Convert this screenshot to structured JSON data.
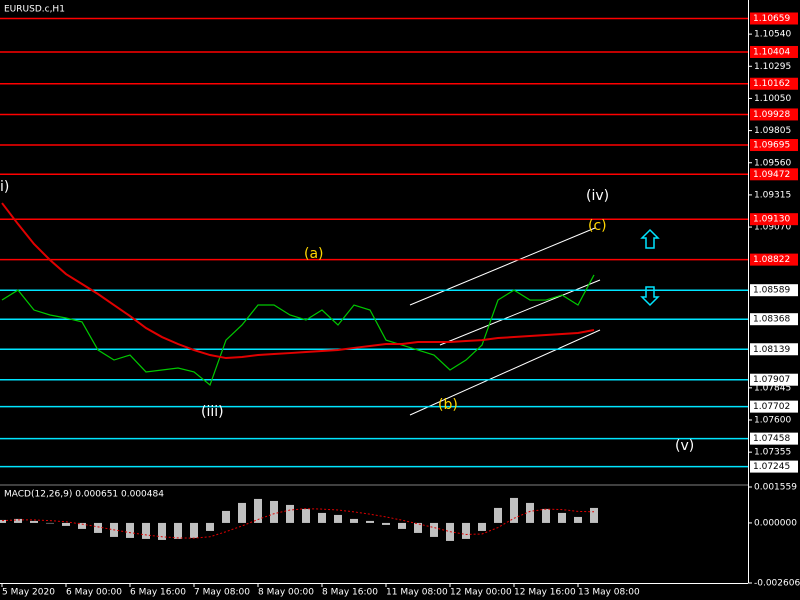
{
  "chart_data": [
    {
      "type": "line",
      "title": "EURUSD.c,H1",
      "categories": [
        "5 May 2020",
        null,
        null,
        null,
        "6 May 00:00",
        null,
        null,
        null,
        "6 May 16:00",
        null,
        null,
        null,
        "7 May 08:00",
        null,
        null,
        null,
        "8 May 00:00",
        null,
        null,
        null,
        "8 May 16:00",
        null,
        null,
        null,
        "11 May 08:00",
        null,
        null,
        null,
        "12 May 00:00",
        null,
        null,
        null,
        "12 May 16:00",
        null,
        null,
        null,
        "13 May 08:00",
        null
      ],
      "series": [
        {
          "color": "#00c800",
          "values": [
            1.08514,
            1.0859,
            1.08438,
            1.084,
            1.08377,
            1.08347,
            1.08133,
            1.08057,
            1.08095,
            1.07966,
            1.07981,
            1.07996,
            1.07966,
            1.07867,
            1.08209,
            1.08324,
            1.08476,
            1.08476,
            1.084,
            1.08362,
            1.08438,
            1.08324,
            1.08476,
            1.08438,
            1.08209,
            1.08171,
            1.08133,
            1.08095,
            1.07981,
            1.08057,
            1.08171,
            1.08514,
            1.0859,
            1.08514,
            1.08514,
            1.08552,
            1.08476,
            1.08705
          ]
        },
        {
          "color": "#e00000",
          "values": [
            1.09253,
            1.09093,
            1.08941,
            1.08819,
            1.08712,
            1.08636,
            1.0856,
            1.08476,
            1.08392,
            1.08301,
            1.08232,
            1.08179,
            1.08133,
            1.08095,
            1.08072,
            1.0808,
            1.08095,
            1.08103,
            1.0811,
            1.08118,
            1.08126,
            1.08133,
            1.08149,
            1.08164,
            1.08179,
            1.08179,
            1.08194,
            1.08194,
            1.08194,
            1.08202,
            1.08209,
            1.08225,
            1.08232,
            1.0824,
            1.08248,
            1.08255,
            1.08263,
            1.08286
          ]
        }
      ],
      "ylim": [
        1.0712,
        1.108
      ],
      "yticks": [
        {
          "value": 1.1054,
          "label": "1.10540"
        },
        1.10295,
        {
          "value": 1.1005,
          "label": "1.10050"
        },
        1.09805,
        {
          "value": 1.0956,
          "label": "1.09560"
        },
        1.09315,
        {
          "value": 1.0907,
          "label": "1.09070"
        },
        1.07845,
        {
          "value": 1.076,
          "label": "1.07600"
        },
        1.07355
      ],
      "levels": [
        {
          "value": 1.10659,
          "color": "#ff0000"
        },
        {
          "value": 1.10404,
          "color": "#ff0000"
        },
        {
          "value": 1.10162,
          "color": "#ff0000"
        },
        {
          "value": 1.09928,
          "color": "#ff0000"
        },
        {
          "value": 1.09695,
          "color": "#ff0000"
        },
        {
          "value": 1.09472,
          "color": "#ff0000"
        },
        {
          "value": 1.0913,
          "label": "1.09130",
          "color": "#ff0000"
        },
        {
          "value": 1.08822,
          "color": "#ff0000"
        },
        {
          "value": 1.08589,
          "color": "#00e5ff"
        },
        {
          "value": 1.08368,
          "color": "#00e5ff"
        },
        {
          "value": 1.08139,
          "color": "#00e5ff"
        },
        {
          "value": 1.07907,
          "color": "#00e5ff"
        },
        {
          "value": 1.07702,
          "color": "#00e5ff"
        },
        {
          "value": 1.07458,
          "color": "#00e5ff"
        },
        {
          "value": 1.07245,
          "color": "#00e5ff"
        }
      ],
      "annotations": [
        {
          "text": "i)",
          "color": "#ffffff"
        },
        {
          "text": "(iv)",
          "color": "#ffffff"
        },
        {
          "text": "(c)",
          "color": "#ffd700"
        },
        {
          "text": "(a)",
          "color": "#ffd700"
        },
        {
          "text": "(iii)",
          "color": "#ffffff"
        },
        {
          "text": "(b)",
          "color": "#ffd700"
        },
        {
          "text": "(v)",
          "color": "#ffffff"
        }
      ]
    },
    {
      "type": "bar",
      "title": "MACD(12,26,9) 0.000651 0.000484",
      "series": [
        {
          "color": "#c0c0c0",
          "values": [
            0.00013,
            0.000174,
            8.7e-05,
            0,
            -0.00013,
            -0.00026,
            -0.000434,
            -0.000607,
            -0.000651,
            -0.000694,
            -0.000738,
            -0.000694,
            -0.000651,
            -0.000347,
            0.000521,
            0.000868,
            0.001041,
            0.000954,
            0.000781,
            0.000607,
            0.000434,
            0.000347,
            0.000174,
            8.7e-05,
            -8.7e-05,
            -0.00026,
            -0.000434,
            -0.000607,
            -0.000781,
            -0.000694,
            -0.000347,
            0.000651,
            0.001085,
            0.000868,
            0.000607,
            0.000434,
            0.00026,
            0.000651
          ]
        },
        {
          "color": "#e00000",
          "line_style": "dotted",
          "values": [
            0.0001,
            0.00013,
            0.00013,
            0.0001,
            5e-05,
            -5e-05,
            -0.00017,
            -0.0003,
            -0.00042,
            -0.00052,
            -0.0006,
            -0.00065,
            -0.00066,
            -0.0006,
            -0.00038,
            -0.00013,
            0.00015,
            0.0004,
            0.00056,
            0.00062,
            0.0006,
            0.00056,
            0.00048,
            0.00038,
            0.00026,
            0.00012,
            -4e-05,
            -0.0002,
            -0.00038,
            -0.0005,
            -0.00048,
            -0.0002,
            0.0002,
            0.0005,
            0.0006,
            0.00058,
            0.0005,
            0.000484
          ]
        }
      ],
      "ylim": [
        -0.002606,
        0.001559
      ],
      "yticks": [
        0.001559,
        {
          "value": 0,
          "label": "0.000000"
        },
        -0.002606
      ]
    }
  ]
}
